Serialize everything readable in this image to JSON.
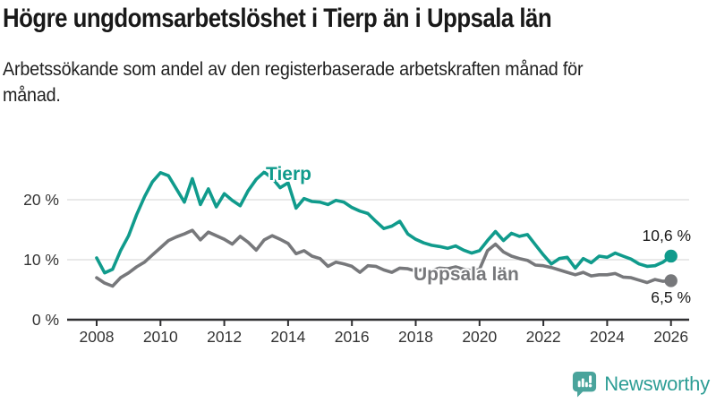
{
  "title": "Högre ungdomsarbetslöshet i Tierp än i Uppsala län",
  "subtitle": "Arbetssökande som andel av den registerbaserade arbetskraften månad för månad.",
  "branding": {
    "logo_text": "Newsworthy",
    "logo_icon": "newsworthy-speech-bubble-bar-chart-icon"
  },
  "colors": {
    "tierp": "#109b8c",
    "uppsala": "#77787b",
    "grid": "#dcdcdc",
    "axis": "#2f2f31",
    "tick_text": "#333333",
    "value_text": "#1a1a1a",
    "brand_text": "#2d9d95",
    "brand_icon": "#4aa49c"
  },
  "chart_data": {
    "type": "line",
    "title": "Högre ungdomsarbetslöshet i Tierp än i Uppsala län",
    "xlabel": "",
    "ylabel": "Arbetssökande som andel av den registerbaserade arbetskraften",
    "x_unit": "decimal_year",
    "x_start": 2008.0,
    "x_step": 0.25,
    "xlim": [
      2007.9,
      2026.6
    ],
    "ylim": [
      0,
      26
    ],
    "grid": "horizontal",
    "legend": "inline-labels",
    "xticks": [
      2008,
      2010,
      2012,
      2014,
      2016,
      2018,
      2020,
      2022,
      2024,
      2026
    ],
    "yticks": [
      {
        "value": 0,
        "label": "0 %"
      },
      {
        "value": 10,
        "label": "10 %"
      },
      {
        "value": 20,
        "label": "20 %"
      }
    ],
    "series": [
      {
        "name": "Tierp",
        "color": "#109b8c",
        "end_label": "10,6 %",
        "end_value": 10.6,
        "values": [
          10.3,
          7.8,
          8.4,
          11.5,
          14.0,
          17.5,
          20.5,
          23.0,
          24.5,
          24.0,
          21.8,
          19.6,
          23.5,
          19.2,
          21.8,
          18.8,
          21.0,
          19.9,
          19.0,
          21.5,
          23.4,
          24.6,
          23.6,
          22.0,
          22.8,
          18.6,
          20.2,
          19.7,
          19.6,
          19.2,
          19.9,
          19.6,
          18.7,
          18.1,
          17.7,
          16.4,
          15.2,
          15.6,
          16.4,
          14.3,
          13.4,
          12.8,
          12.4,
          12.2,
          11.9,
          12.3,
          11.6,
          11.1,
          11.5,
          13.2,
          14.7,
          13.2,
          14.4,
          13.9,
          14.2,
          12.5,
          10.8,
          9.3,
          10.2,
          10.4,
          8.6,
          10.2,
          9.5,
          10.6,
          10.4,
          11.1,
          10.6,
          10.1,
          9.3,
          8.9,
          9.0,
          9.6,
          10.6
        ]
      },
      {
        "name": "Uppsala län",
        "color": "#77787b",
        "end_label": "6,5 %",
        "end_value": 6.5,
        "values": [
          7.0,
          6.1,
          5.6,
          7.0,
          7.8,
          8.8,
          9.6,
          10.8,
          12.0,
          13.2,
          13.8,
          14.3,
          14.9,
          13.3,
          14.6,
          14.0,
          13.4,
          12.6,
          13.9,
          12.9,
          11.6,
          13.3,
          14.0,
          13.4,
          12.7,
          11.0,
          11.5,
          10.6,
          10.2,
          8.9,
          9.6,
          9.3,
          8.9,
          7.9,
          9.0,
          8.9,
          8.3,
          7.9,
          8.6,
          8.5,
          8.1,
          8.4,
          8.2,
          8.6,
          8.5,
          8.8,
          8.4,
          8.2,
          8.4,
          11.5,
          12.6,
          11.3,
          10.6,
          10.2,
          9.9,
          9.1,
          9.0,
          8.7,
          8.3,
          7.9,
          7.5,
          7.9,
          7.3,
          7.5,
          7.5,
          7.7,
          7.1,
          7.0,
          6.6,
          6.2,
          6.7,
          6.4,
          6.5
        ]
      }
    ]
  }
}
